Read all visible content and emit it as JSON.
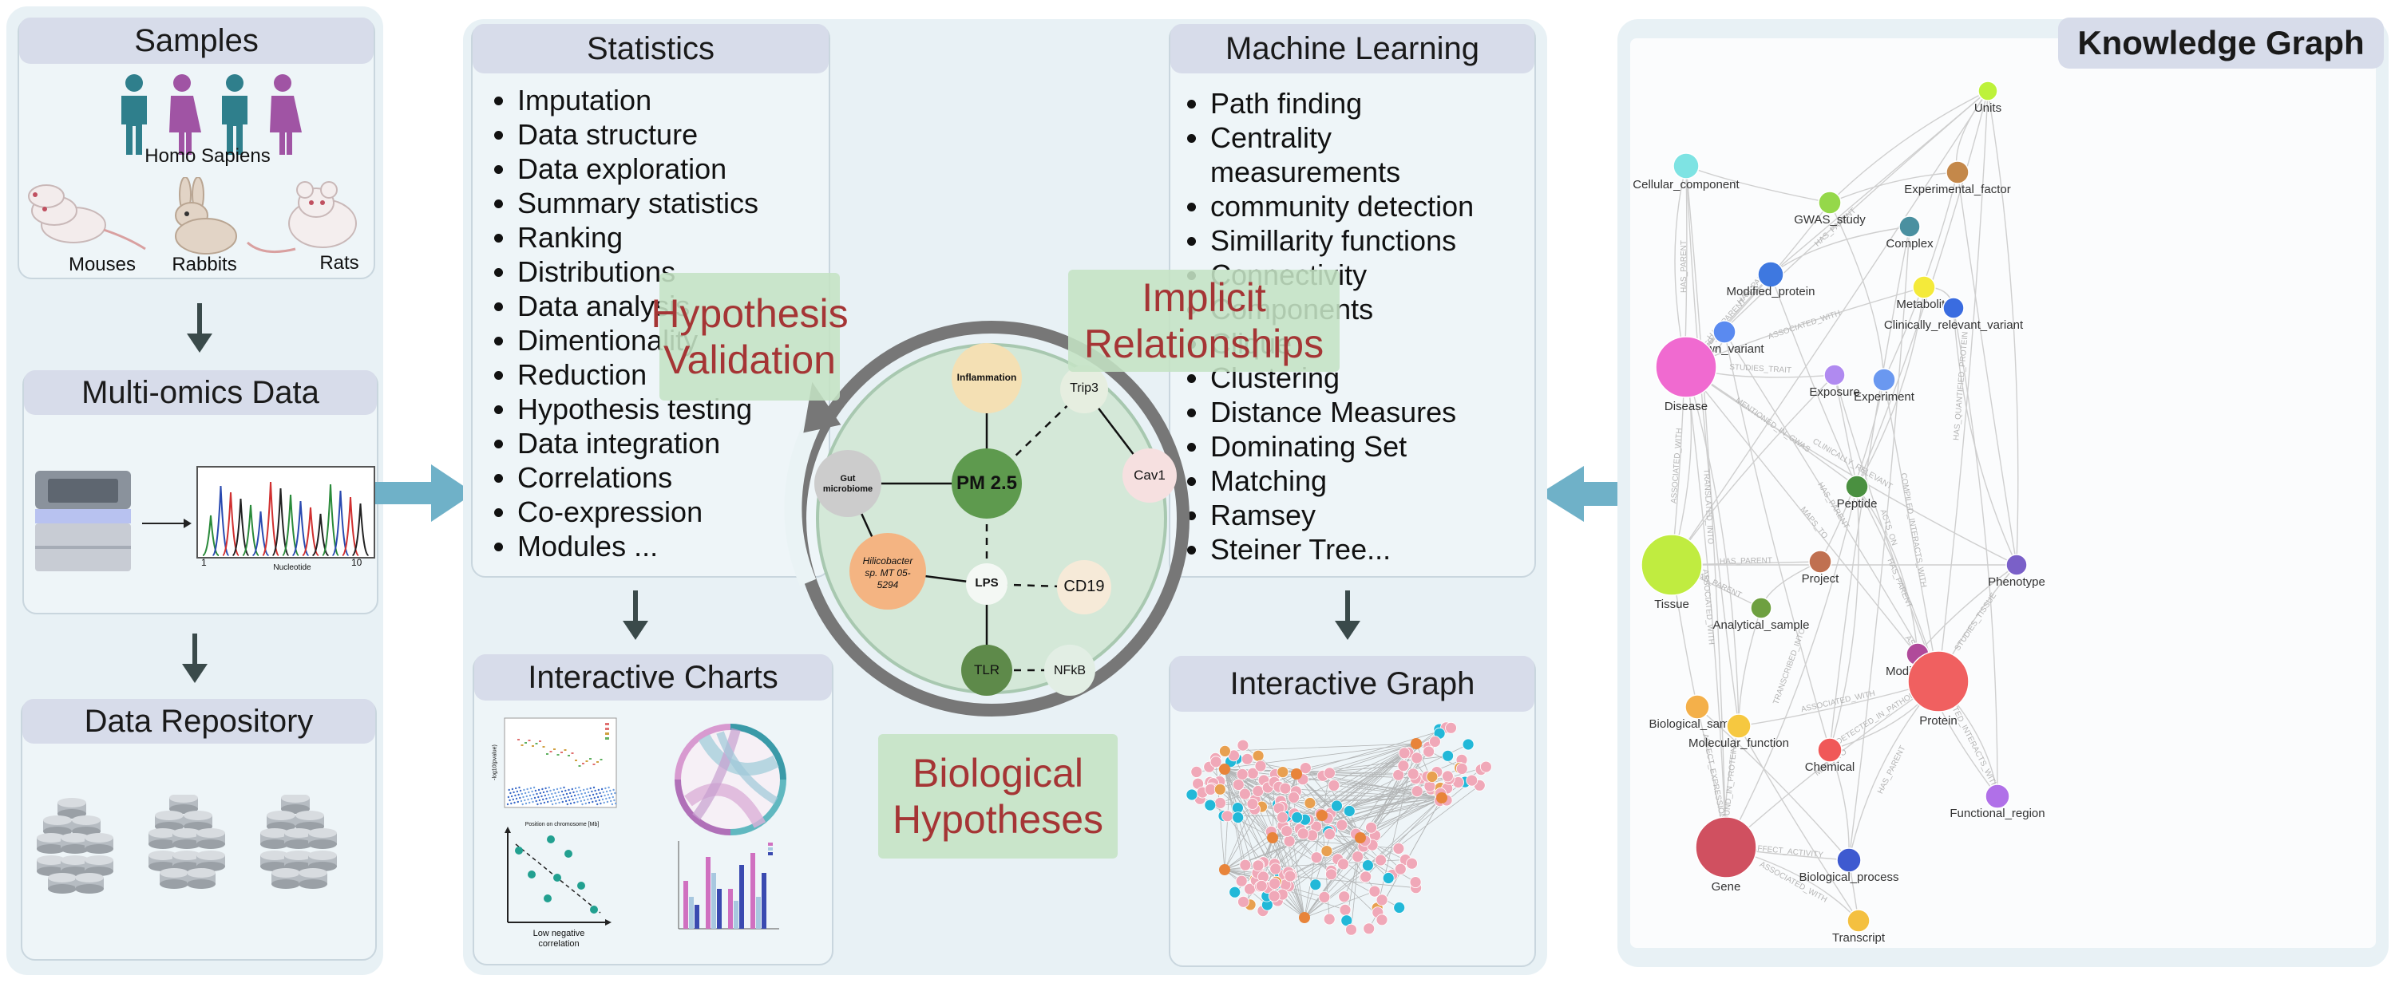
{
  "samples": {
    "title": "Samples",
    "homo_label": "Homo Sapiens",
    "mouse_label": "Mouses",
    "rabbit_label": "Rabbits",
    "rat_label": "Rats"
  },
  "multiomics": {
    "title": "Multi-omics Data",
    "x_tick_start": "1",
    "x_tick_end": "10",
    "x_label": "Nucleotide"
  },
  "repository": {
    "title": "Data Repository"
  },
  "statistics": {
    "title": "Statistics",
    "items": [
      "Imputation",
      "Data structure",
      "Data exploration",
      "Summary statistics",
      "Ranking",
      "Distributions",
      "Data analysis",
      "Dimentionality",
      "Reduction",
      "Hypothesis testing",
      "Data integration",
      "Correlations",
      "Co-expression",
      "Modules  ..."
    ]
  },
  "ml": {
    "title": "Machine Learning",
    "items": [
      "Path finding",
      "Centrality measurements",
      "community detection",
      "Simillarity functions",
      "Connectivity",
      "Components",
      "Clique",
      "Clustering",
      "Distance Measures",
      "Dominating Set",
      "Matching",
      "Ramsey",
      "Steiner Tree..."
    ]
  },
  "charts": {
    "title": "Interactive Charts",
    "manhattan_xlabel": "Position on chromosome [Mb]",
    "manhattan_ylabel": "-log10(pvalue)",
    "scatter_caption": "Low negative correlation"
  },
  "graph": {
    "title": "Interactive Graph"
  },
  "center": {
    "hyp_validation": "Hypothesis Validation",
    "implicit": "Implicit Relationships",
    "bio_hyp": "Biological Hypotheses",
    "nodes": {
      "pm": "PM 2.5",
      "inflammation": "Inflammation",
      "trip3": "Trip3",
      "cav1": "Cav1",
      "gut": "Gut microbiome",
      "helico": "Hilicobacter sp. MT 05-5294",
      "lps": "LPS",
      "cd19": "CD19",
      "tlr": "TLR",
      "nfkb": "NFkB"
    }
  },
  "kg": {
    "title": "Knowledge Graph",
    "nodes": [
      {
        "label": "Units",
        "color": "#bdf23a"
      },
      {
        "label": "Cellular_component",
        "color": "#7ee3e3"
      },
      {
        "label": "Experimental_factor",
        "color": "#c4884a"
      },
      {
        "label": "GWAS_study",
        "color": "#95d84a"
      },
      {
        "label": "Complex",
        "color": "#4a90a0"
      },
      {
        "label": "Modified_protein",
        "color": "#3e78e0"
      },
      {
        "label": "Metabolite",
        "color": "#f4ea3a"
      },
      {
        "label": "Clinically_relevant_variant",
        "color": "#3a6ce0"
      },
      {
        "label": "Known_variant",
        "color": "#5a8af0"
      },
      {
        "label": "Disease",
        "color": "#f06ad0"
      },
      {
        "label": "Exposure",
        "color": "#b08af0"
      },
      {
        "label": "Experiment",
        "color": "#6a98f0"
      },
      {
        "label": "Peptide",
        "color": "#4a9040"
      },
      {
        "label": "Phenotype",
        "color": "#7a60c8"
      },
      {
        "label": "Tissue",
        "color": "#c0ec40"
      },
      {
        "label": "Project",
        "color": "#c07050"
      },
      {
        "label": "Analytical_sample",
        "color": "#6ea040"
      },
      {
        "label": "Modification",
        "color": "#b04a9a"
      },
      {
        "label": "Protein",
        "color": "#f06060"
      },
      {
        "label": "Biological_sample",
        "color": "#f4b04a"
      },
      {
        "label": "Molecular_function",
        "color": "#f6c840"
      },
      {
        "label": "Chemical",
        "color": "#f05858"
      },
      {
        "label": "Functional_region",
        "color": "#b070e8"
      },
      {
        "label": "Gene",
        "color": "#d05060"
      },
      {
        "label": "Biological_process",
        "color": "#3e5ad0"
      },
      {
        "label": "Transcript",
        "color": "#f4c040"
      }
    ],
    "edge_labels": [
      "HAS_PARENT",
      "HAS_PARENT",
      "HAS_PARENT",
      "HAS_PARENT",
      "ASSOCIATED_WITH",
      "STUDIES_TRAIT",
      "MENTIONED_IN_GWAS",
      "MAPS_TO",
      "ASSOCIATED_WITH",
      "ASSOCIATED_WITH",
      "ASSOCIATED_WITH",
      "CLINICALLY_RELEVANT",
      "MAPS_TO",
      "HAS_PARENT",
      "DETECTED_IN_PATHOLOGY",
      "HAS_PARENT",
      "STUDIES_TISSUE",
      "ASSOCIATED_WITH",
      "HAS_QUANTIFIED_PROTEIN",
      "CURATED_INTERACTS_WITH",
      "ASSOCIATED_WITH",
      "ACTS_ON",
      "COMPILED_INTERACTS_WITH",
      "HAS_PARENT",
      "ASSOCIATED_WITH",
      "AFFECT_ACTIVITY",
      "FOUND_IN_PROTEIN",
      "AFFECT_EXPRESSION",
      "TRANSLATED_INTO",
      "TRANSCRIBED_INTO",
      "HAS_PARENT",
      "HAS_PARENT"
    ]
  },
  "colors": {
    "panel_bg": "#e8f1f5",
    "title_bg": "#d7dcea",
    "arrow_blue": "#6fb1c8",
    "hypothesis_red": "#a53535",
    "hypothesis_green": "#c4e2c4"
  }
}
